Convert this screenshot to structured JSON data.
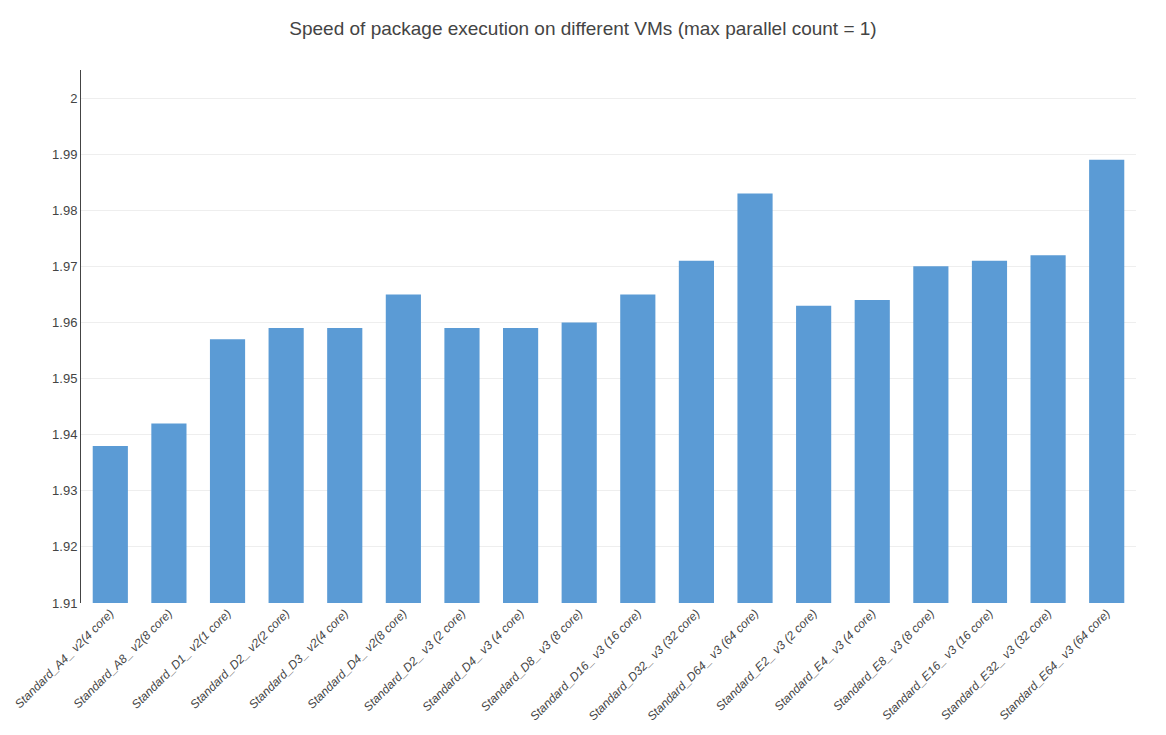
{
  "chart_data": {
    "type": "bar",
    "title": "Speed of package execution on different VMs (max parallel count = 1)",
    "categories": [
      "Standard_A4_ v2(4 core)",
      "Standard_A8_ v2(8 core)",
      "Standard_D1_ v2(1 core)",
      "Standard_D2_ v2(2 core)",
      "Standard_D3_ v2(4 core)",
      "Standard_D4_ v2(8 core)",
      "Standard_D2_ v3 (2 core)",
      "Standard_D4_ v3 (4 core)",
      "Standard_D8_ v3 (8 core)",
      "Standard_D16_ v3 (16 core)",
      "Standard_D32_ v3 (32 core)",
      "Standard_D64_ v3 (64 core)",
      "Standard_E2_ v3 (2 core)",
      "Standard_E4_ v3 (4 core)",
      "Standard_E8_ v3 (8 core)",
      "Standard_E16_ v3 (16 core)",
      "Standard_E32_ v3 (32 core)",
      "Standard_E64_ v3 (64 core)"
    ],
    "values": [
      1.938,
      1.942,
      1.957,
      1.959,
      1.959,
      1.965,
      1.959,
      1.959,
      1.96,
      1.965,
      1.971,
      1.983,
      1.963,
      1.964,
      1.97,
      1.971,
      1.972,
      1.989
    ],
    "color": "#5b9bd5",
    "ylim": [
      1.91,
      2.005
    ],
    "yticks": [
      1.91,
      1.92,
      1.93,
      1.94,
      1.95,
      1.96,
      1.97,
      1.98,
      1.99,
      2
    ],
    "grid": true
  }
}
